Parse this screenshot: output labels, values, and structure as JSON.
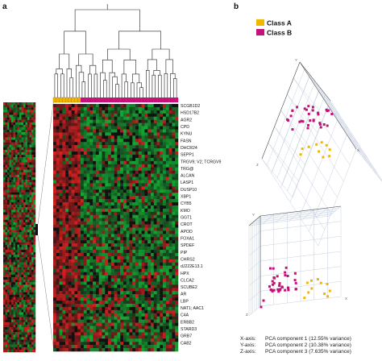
{
  "panels": {
    "a": "a",
    "b": "b"
  },
  "legend": [
    {
      "label": "Class A",
      "color": "#f2b600"
    },
    {
      "label": "Class B",
      "color": "#c4127a"
    }
  ],
  "colors": {
    "red": "#d42020",
    "green": "#15a834",
    "black": "#111111",
    "classA": "#f2b600",
    "classB": "#c4127a"
  },
  "heatmap": {
    "class_a_samples": 9,
    "class_b_samples": 32,
    "rows": 78
  },
  "genes": [
    "SCGB1D2",
    "HSD17B2",
    "AGR2",
    "CPD",
    "KYNU",
    "FASN",
    "DHCR24",
    "SEPP1",
    "TRGV9; V2; TCRGV9",
    "TRG@",
    "ALCAN",
    "LASP1",
    "DUSP10",
    "XBP1",
    "CYB5",
    "KMO",
    "GGT1",
    "CROT",
    "APOD",
    "FOXA1",
    "SPDEF",
    "PIP",
    "CHRS2",
    "dJ222E13.1",
    "HPX",
    "CLCA2",
    "SCUBE2",
    "AR",
    "LBP",
    "NAT1; AAC1",
    "C4A",
    "ERBB2",
    "STARD3",
    "GRB7",
    "CAB2"
  ],
  "pca_axes": [
    {
      "label": "X-axis:",
      "desc": "PCA component 1 (12.55% variance)"
    },
    {
      "label": "Y-axis:",
      "desc": "PCA component 2 (10.38% variance)"
    },
    {
      "label": "Z-axis:",
      "desc": "PCA component 3 (7.635% variance)"
    }
  ],
  "plot_axis_letters": {
    "x": "X",
    "y": "Y",
    "z": "Z"
  }
}
